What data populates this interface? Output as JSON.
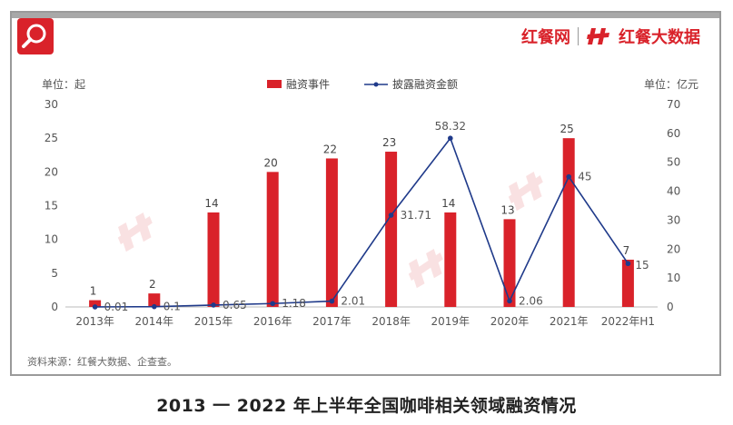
{
  "brand": {
    "name_1": "红餐网",
    "name_2": "红餐大数据"
  },
  "chart_data": {
    "type": "bar",
    "title": "2013 一 2022 年上半年全国咖啡相关领域融资情况",
    "categories": [
      "2013年",
      "2014年",
      "2015年",
      "2016年",
      "2017年",
      "2018年",
      "2019年",
      "2020年",
      "2021年",
      "2022年H1"
    ],
    "series": [
      {
        "name": "融资事件",
        "type": "bar",
        "axis": "left",
        "values": [
          1,
          2,
          14,
          20,
          22,
          23,
          14,
          13,
          25,
          7
        ],
        "labels": [
          "1",
          "2",
          "14",
          "20",
          "22",
          "23",
          "14",
          "13",
          "25",
          "7"
        ],
        "color": "#d9222a"
      },
      {
        "name": "披露融资金额",
        "type": "line",
        "axis": "right",
        "values": [
          0.01,
          0.1,
          0.65,
          1.18,
          2.01,
          31.71,
          58.32,
          2.06,
          45,
          15
        ],
        "labels": [
          "0.01",
          "0.1",
          "0.65",
          "1.18",
          "2.01",
          "31.71",
          "58.32",
          "2.06",
          "45",
          "15"
        ],
        "color": "#1f3a8a"
      }
    ],
    "y_left": {
      "label": "单位：起",
      "range": [
        0,
        30
      ],
      "ticks": [
        "0",
        "5",
        "10",
        "15",
        "20",
        "25",
        "30"
      ]
    },
    "y_right": {
      "label": "单位：亿元",
      "range": [
        0,
        70
      ],
      "ticks": [
        "0",
        "10",
        "20",
        "30",
        "40",
        "50",
        "60",
        "70"
      ]
    },
    "grid": false,
    "legend_position": "top"
  },
  "source_note": "资料来源：红餐大数据、企查查。"
}
